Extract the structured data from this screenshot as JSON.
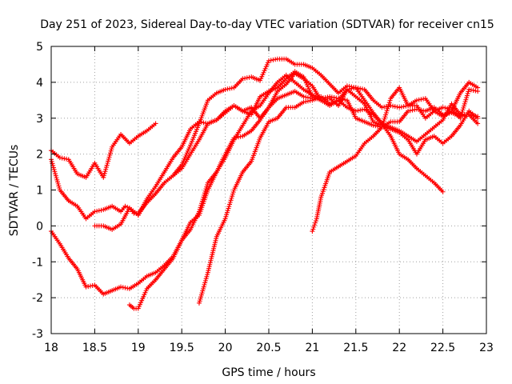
{
  "chart_data": {
    "type": "scatter",
    "title": "Day 251 of 2023, Sidereal Day-to-day VTEC variation (SDTVAR) for receiver cn15",
    "xlabel": "GPS time / hours",
    "ylabel": "SDTVAR / TECUs",
    "xlim": [
      18,
      23
    ],
    "ylim": [
      -3,
      5
    ],
    "xticks": [
      "18",
      "18.5",
      "19",
      "19.5",
      "20",
      "20.5",
      "21",
      "21.5",
      "22",
      "22.5",
      "23"
    ],
    "yticks": [
      "-3",
      "-2",
      "-1",
      "0",
      "1",
      "2",
      "3",
      "4",
      "5"
    ],
    "grid": true,
    "marker": "+",
    "color": "#ff0000",
    "series": [
      {
        "x": [
          18.0,
          18.1,
          18.2,
          18.3,
          18.4,
          18.5,
          18.6,
          18.7,
          18.8,
          18.9,
          19.0,
          19.1,
          19.2
        ],
        "y": [
          2.1,
          1.9,
          1.85,
          1.45,
          1.35,
          1.75,
          1.35,
          2.2,
          2.55,
          2.3,
          2.5,
          2.65,
          2.85
        ]
      },
      {
        "x": [
          18.0,
          18.1,
          18.2,
          18.3,
          18.4,
          18.5,
          18.6,
          18.7,
          18.8,
          18.85,
          18.9,
          19.0,
          19.1
        ],
        "y": [
          1.85,
          1.0,
          0.7,
          0.55,
          0.2,
          0.4,
          0.45,
          0.55,
          0.4,
          0.55,
          0.5,
          0.3,
          0.7
        ]
      },
      {
        "x": [
          18.0,
          18.1,
          18.2,
          18.3,
          18.4,
          18.5,
          18.6,
          18.7,
          18.8,
          18.9,
          19.0,
          19.1,
          19.2,
          19.3,
          19.4,
          19.5,
          19.6,
          19.7,
          19.8,
          19.9,
          20.0,
          20.1,
          20.2,
          20.3,
          20.4,
          20.5,
          20.6,
          20.7,
          20.8,
          20.9,
          21.0
        ],
        "y": [
          -0.15,
          -0.5,
          -0.9,
          -1.2,
          -1.7,
          -1.65,
          -1.9,
          -1.8,
          -1.7,
          -1.75,
          -1.6,
          -1.4,
          -1.3,
          -1.1,
          -0.85,
          -0.4,
          -0.1,
          0.4,
          1.2,
          1.5,
          2.0,
          2.45,
          2.5,
          2.65,
          2.95,
          3.3,
          3.55,
          3.65,
          3.75,
          3.6,
          3.55
        ]
      },
      {
        "x": [
          18.5,
          18.6,
          18.7,
          18.8,
          18.9,
          18.95,
          19.0,
          19.1,
          19.2,
          19.3,
          19.4,
          19.5,
          19.6,
          19.7,
          19.8,
          19.9,
          20.0,
          20.1,
          20.2,
          20.3,
          20.4,
          20.5,
          20.6,
          20.7,
          20.8,
          20.9,
          21.0,
          21.1,
          21.2,
          21.3,
          21.4,
          21.5,
          21.6,
          21.7,
          21.8,
          21.9,
          22.0,
          22.1,
          22.2,
          22.3,
          22.4,
          22.5
        ],
        "y": [
          0.0,
          0.0,
          -0.1,
          0.05,
          0.5,
          0.35,
          0.35,
          0.65,
          0.9,
          1.2,
          1.4,
          1.6,
          2.0,
          2.4,
          2.85,
          2.95,
          3.2,
          3.35,
          3.2,
          3.3,
          3.0,
          3.3,
          3.75,
          3.95,
          4.25,
          4.1,
          3.9,
          3.5,
          3.35,
          3.5,
          3.3,
          3.2,
          3.25,
          3.1,
          2.85,
          2.5,
          2.0,
          1.85,
          1.6,
          1.4,
          1.2,
          0.95
        ]
      },
      {
        "x": [
          18.9,
          18.95,
          19.0,
          19.1,
          19.2,
          19.3,
          19.4,
          19.5,
          19.6,
          19.7,
          19.8,
          19.9,
          20.0,
          20.1,
          20.2,
          20.3,
          20.4,
          20.5,
          20.6,
          20.7,
          20.8,
          20.9,
          21.0,
          21.1,
          21.2,
          21.3,
          21.4,
          21.5,
          21.6,
          21.7,
          21.8,
          21.9,
          22.0,
          22.1,
          22.2,
          22.3,
          22.4,
          22.5,
          22.6,
          22.7,
          22.8,
          22.9
        ],
        "y": [
          -2.2,
          -2.3,
          -2.3,
          -1.75,
          -1.5,
          -1.2,
          -0.9,
          -0.4,
          0.1,
          0.3,
          1.0,
          1.5,
          1.9,
          2.4,
          2.8,
          3.2,
          3.35,
          3.7,
          4.0,
          4.2,
          4.0,
          3.8,
          3.65,
          3.55,
          3.6,
          3.55,
          3.5,
          3.0,
          2.9,
          2.8,
          2.75,
          2.9,
          2.9,
          3.2,
          3.25,
          3.2,
          3.3,
          3.1,
          3.15,
          3.05,
          3.1,
          2.85
        ]
      },
      {
        "x": [
          19.0,
          19.1,
          19.2,
          19.3,
          19.4,
          19.5,
          19.6,
          19.7,
          19.8,
          19.9,
          20.0,
          20.1,
          20.2,
          20.3,
          20.4,
          20.5,
          20.6,
          20.7,
          20.8,
          20.9,
          21.0,
          21.1,
          21.2,
          21.3,
          21.4,
          21.5,
          21.6,
          21.7,
          21.8,
          21.9,
          22.0,
          22.1,
          22.2,
          22.3,
          22.4,
          22.5,
          22.6,
          22.7,
          22.8,
          22.9
        ],
        "y": [
          0.3,
          0.75,
          1.1,
          1.5,
          1.9,
          2.2,
          2.7,
          2.9,
          2.85,
          2.95,
          3.15,
          3.35,
          3.2,
          3.1,
          3.6,
          3.75,
          3.85,
          4.1,
          4.3,
          4.15,
          3.6,
          3.5,
          3.55,
          3.35,
          3.8,
          3.6,
          3.4,
          2.9,
          2.8,
          2.7,
          2.6,
          2.4,
          2.0,
          2.4,
          2.5,
          2.3,
          2.5,
          2.8,
          3.2,
          3.0
        ]
      },
      {
        "x": [
          19.7,
          19.8,
          19.9,
          20.0,
          20.1,
          20.2,
          20.3,
          20.4,
          20.5,
          20.6,
          20.7,
          20.8,
          20.9,
          21.0,
          21.1,
          21.2,
          21.3,
          21.4,
          21.5,
          21.6,
          21.7,
          21.8,
          21.9,
          22.0,
          22.1,
          22.2,
          22.3,
          22.4,
          22.5,
          22.6,
          22.7,
          22.8,
          22.9
        ],
        "y": [
          -2.15,
          -1.3,
          -0.3,
          0.2,
          1.0,
          1.5,
          1.8,
          2.45,
          2.9,
          3.0,
          3.3,
          3.3,
          3.45,
          3.5,
          3.6,
          3.4,
          3.5,
          3.8,
          3.85,
          3.5,
          3.15,
          2.85,
          2.75,
          2.65,
          2.5,
          2.35,
          2.55,
          2.75,
          2.95,
          3.4,
          3.1,
          3.1,
          3.05
        ]
      },
      {
        "x": [
          19.4,
          19.5,
          19.6,
          19.7,
          19.8,
          19.9,
          20.0,
          20.1,
          20.2,
          20.3,
          20.4,
          20.5,
          20.6,
          20.7,
          20.8,
          20.9,
          21.0,
          21.1,
          21.2,
          21.3,
          21.4,
          21.5,
          21.6,
          21.7,
          21.8,
          21.9,
          22.0,
          22.1,
          22.2,
          22.3,
          22.4,
          22.5,
          22.6,
          22.7,
          22.8,
          22.9
        ],
        "y": [
          1.4,
          1.7,
          2.25,
          2.85,
          3.5,
          3.7,
          3.8,
          3.85,
          4.1,
          4.15,
          4.05,
          4.6,
          4.65,
          4.65,
          4.5,
          4.5,
          4.4,
          4.2,
          3.95,
          3.7,
          3.9,
          3.85,
          3.8,
          3.5,
          3.3,
          3.35,
          3.3,
          3.35,
          3.5,
          3.55,
          3.2,
          3.3,
          3.25,
          3.0,
          3.8,
          3.75
        ]
      },
      {
        "x": [
          21.0,
          21.05,
          21.1,
          21.2,
          21.3,
          21.4,
          21.5,
          21.6,
          21.7,
          21.8,
          21.9,
          22.0,
          22.1,
          22.2,
          22.3,
          22.4,
          22.5,
          22.6,
          22.7,
          22.8,
          22.9
        ],
        "y": [
          -0.15,
          0.2,
          0.8,
          1.5,
          1.65,
          1.8,
          1.95,
          2.3,
          2.5,
          2.75,
          3.55,
          3.85,
          3.35,
          3.35,
          3.0,
          3.2,
          3.05,
          3.2,
          3.7,
          4.0,
          3.85
        ]
      }
    ]
  }
}
